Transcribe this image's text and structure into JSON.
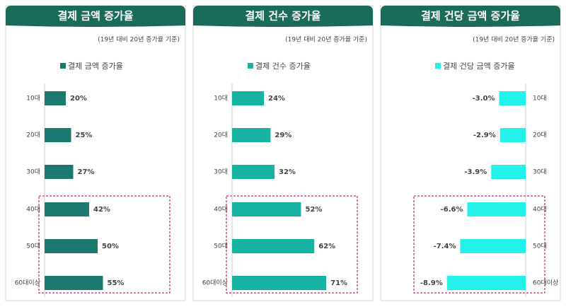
{
  "chart_data": [
    {
      "type": "bar",
      "orientation": "horizontal",
      "title": "결제 금액 증가율",
      "subtitle": "(19년 대비 20년 증가율 기준)",
      "categories": [
        "10대",
        "20대",
        "30대",
        "40대",
        "50대",
        "60대이상"
      ],
      "series": [
        {
          "name": "결제 금액 증가율",
          "color": "#1b7a6e",
          "values": [
            20,
            25,
            27,
            42,
            50,
            55
          ],
          "value_labels": [
            "20%",
            "25%",
            "27%",
            "42%",
            "50%",
            "55%"
          ]
        }
      ],
      "xlim": [
        0,
        100
      ]
    },
    {
      "type": "bar",
      "orientation": "horizontal",
      "title": "결제 건수 증가율",
      "subtitle": "(19년 대비 20년 증가율 기준)",
      "categories": [
        "10대",
        "20대",
        "30대",
        "40대",
        "50대",
        "60대이상"
      ],
      "series": [
        {
          "name": "결제 건수 증가율",
          "color": "#16b3a2",
          "values": [
            24,
            29,
            32,
            52,
            62,
            71
          ],
          "value_labels": [
            "24%",
            "29%",
            "32%",
            "52%",
            "62%",
            "71%"
          ]
        }
      ],
      "xlim": [
        0,
        80
      ]
    },
    {
      "type": "bar",
      "orientation": "horizontal",
      "title": "결제 건당 금액 증가율",
      "subtitle": "(19년 대비 20년 증가율 기준)",
      "categories": [
        "10대",
        "20대",
        "30대",
        "40대",
        "50대",
        "60대이상"
      ],
      "series": [
        {
          "name": "결제 건당 금액 증가율",
          "color": "#22f2ea",
          "values": [
            -3.0,
            -2.9,
            -3.9,
            -6.6,
            -7.4,
            -8.9
          ],
          "value_labels": [
            "-3.0%",
            "-2.9%",
            "-3.9%",
            "-6.6%",
            "-7.4%",
            "-8.9%"
          ]
        }
      ],
      "xlim": [
        -12,
        0
      ]
    }
  ]
}
